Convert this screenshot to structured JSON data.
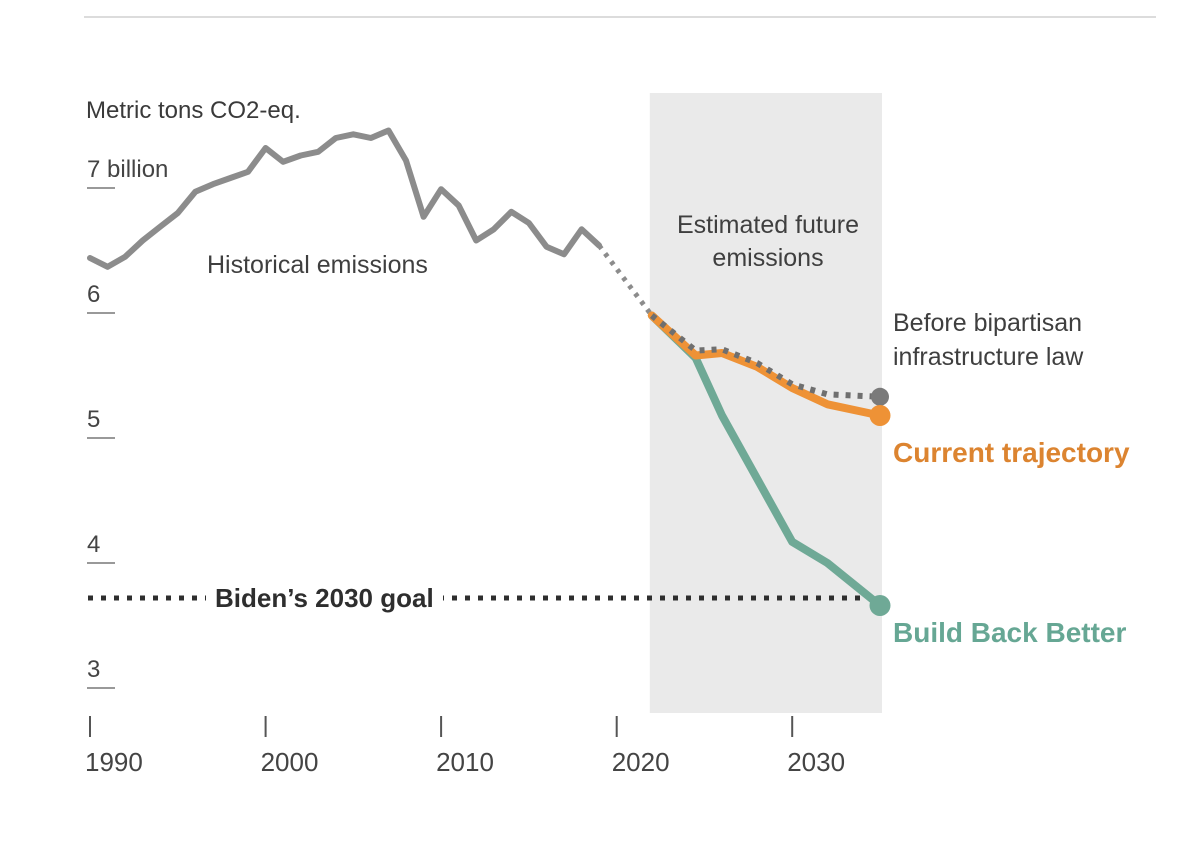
{
  "chart_data": {
    "type": "line",
    "title": "Metric tons CO2-eq.",
    "xlabel": "",
    "ylabel": "Metric tons CO2-eq.",
    "xlim": [
      1990,
      2035
    ],
    "ylim": [
      2.8,
      7.6
    ],
    "grid": false,
    "legend_position": "inline-annotations",
    "y_ticks": [
      {
        "value": 7,
        "label": "7 billion"
      },
      {
        "value": 6,
        "label": "6"
      },
      {
        "value": 5,
        "label": "5"
      },
      {
        "value": 4,
        "label": "4"
      },
      {
        "value": 3,
        "label": "3"
      }
    ],
    "x_ticks": [
      {
        "value": 1990,
        "label": "1990"
      },
      {
        "value": 2000,
        "label": "2000"
      },
      {
        "value": 2010,
        "label": "2010"
      },
      {
        "value": 2020,
        "label": "2020"
      },
      {
        "value": 2030,
        "label": "2030"
      }
    ],
    "future_region": {
      "label": "Estimated future emissions",
      "x_start": 2022,
      "x_end": 2035,
      "color": "#eaeaea"
    },
    "goal_line": {
      "label": "Biden’s 2030 goal",
      "value": 3.72,
      "style": "dotted",
      "color": "#2e2e2e"
    },
    "series": [
      {
        "id": "historical",
        "name": "Historical emissions",
        "style": "solid",
        "color": "#8c8c8c",
        "width": 6,
        "points": [
          [
            1990,
            6.44
          ],
          [
            1991,
            6.37
          ],
          [
            1992,
            6.45
          ],
          [
            1993,
            6.58
          ],
          [
            1994,
            6.69
          ],
          [
            1995,
            6.8
          ],
          [
            1996,
            6.97
          ],
          [
            1997,
            7.03
          ],
          [
            1998,
            7.08
          ],
          [
            1999,
            7.13
          ],
          [
            2000,
            7.32
          ],
          [
            2001,
            7.21
          ],
          [
            2002,
            7.26
          ],
          [
            2003,
            7.29
          ],
          [
            2004,
            7.4
          ],
          [
            2005,
            7.43
          ],
          [
            2006,
            7.4
          ],
          [
            2007,
            7.46
          ],
          [
            2008,
            7.22
          ],
          [
            2009,
            6.77
          ],
          [
            2010,
            6.99
          ],
          [
            2011,
            6.86
          ],
          [
            2012,
            6.58
          ],
          [
            2013,
            6.67
          ],
          [
            2014,
            6.81
          ],
          [
            2015,
            6.72
          ],
          [
            2016,
            6.53
          ],
          [
            2017,
            6.47
          ],
          [
            2018,
            6.67
          ],
          [
            2019,
            6.54
          ]
        ]
      },
      {
        "id": "estimated-recent-connector",
        "name": "",
        "style": "dotted",
        "color": "#8c8c8c",
        "width": 5,
        "points": [
          [
            2019,
            6.54
          ],
          [
            2022,
            5.98
          ]
        ]
      },
      {
        "id": "before-infrastructure-law",
        "name": "Before bipartisan infrastructure law",
        "style": "dotted",
        "color": "#6f6f6f",
        "width": 6,
        "end_dot": true,
        "dot_color": "#7a7a7a",
        "dot_r": 9,
        "points": [
          [
            2022,
            5.98
          ],
          [
            2024.5,
            5.7
          ],
          [
            2026,
            5.71
          ],
          [
            2028,
            5.6
          ],
          [
            2030,
            5.43
          ],
          [
            2032,
            5.35
          ],
          [
            2035,
            5.33
          ]
        ]
      },
      {
        "id": "current-trajectory",
        "name": "Current trajectory",
        "style": "solid",
        "color": "#EE9236",
        "width": 8,
        "end_dot": true,
        "dot_color": "#EE9236",
        "dot_r": 10.5,
        "points": [
          [
            2022,
            5.98
          ],
          [
            2024.5,
            5.66
          ],
          [
            2026,
            5.68
          ],
          [
            2028,
            5.57
          ],
          [
            2030,
            5.4
          ],
          [
            2032,
            5.27
          ],
          [
            2035,
            5.18
          ]
        ]
      },
      {
        "id": "build-back-better",
        "name": "Build Back Better",
        "style": "solid",
        "color": "#6FA996",
        "width": 8,
        "end_dot": true,
        "dot_color": "#6FA996",
        "dot_r": 10.5,
        "points": [
          [
            2022,
            5.98
          ],
          [
            2024.5,
            5.64
          ],
          [
            2026,
            5.18
          ],
          [
            2030,
            4.17
          ],
          [
            2032,
            4.0
          ],
          [
            2035,
            3.66
          ]
        ]
      }
    ]
  }
}
